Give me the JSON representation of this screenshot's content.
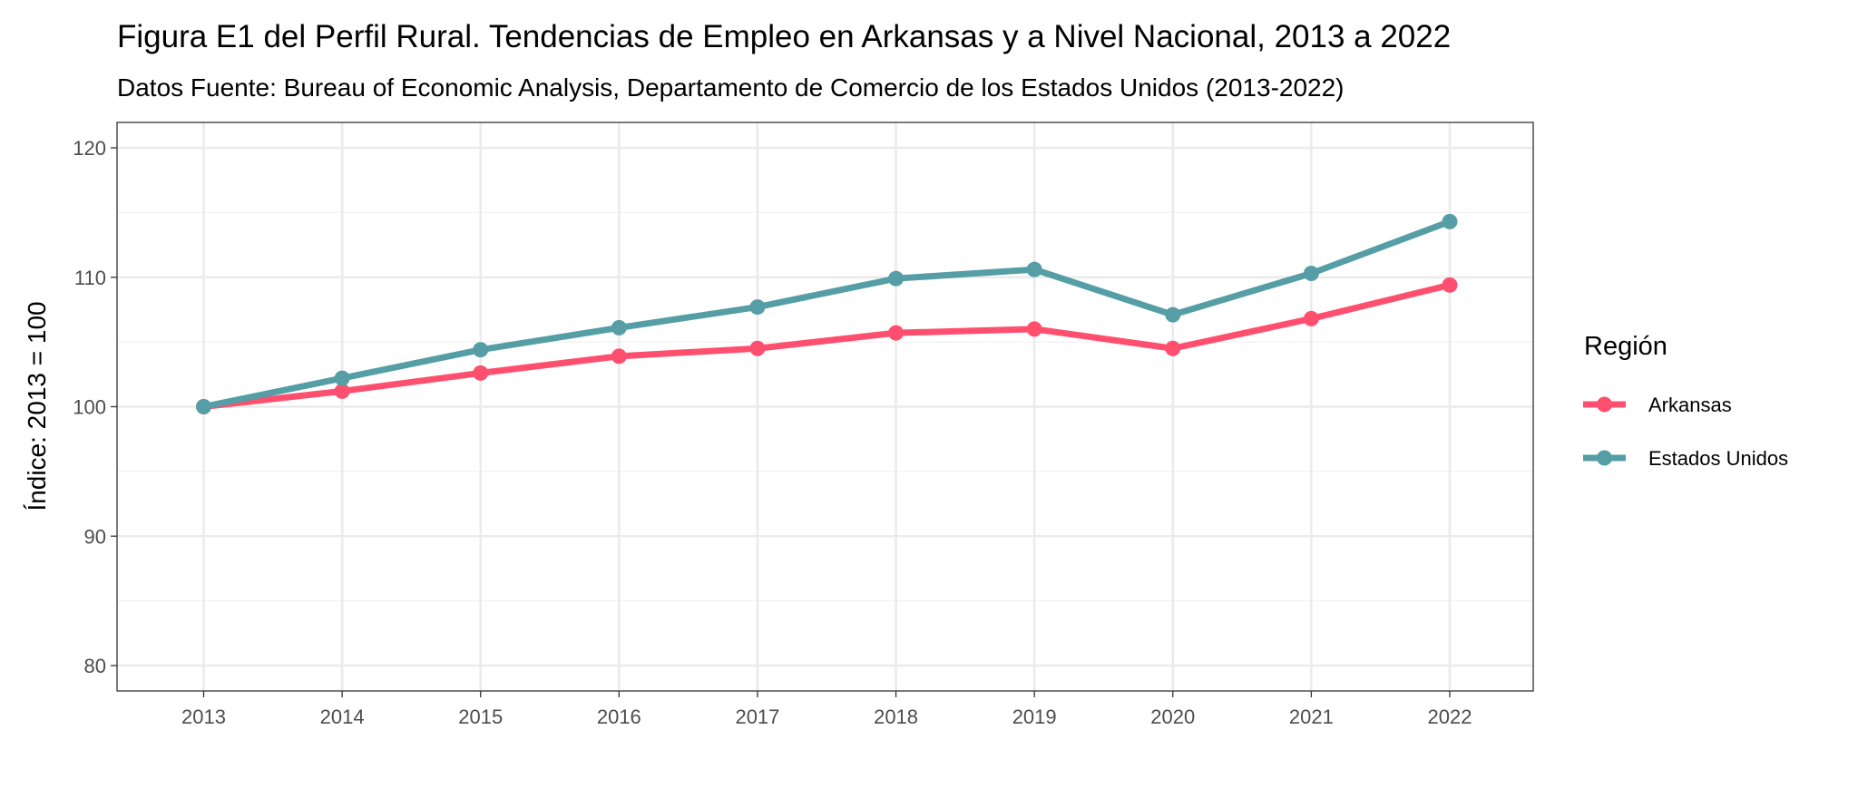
{
  "chart_data": {
    "type": "line",
    "title": "Figura E1 del Perfil Rural. Tendencias de Empleo en Arkansas y a Nivel Nacional, 2013 a 2022",
    "subtitle": "Datos Fuente: Bureau of Economic Analysis, Departamento de Comercio de los Estados Unidos (2013-2022)",
    "xlabel": "",
    "ylabel": "Índice: 2013 = 100",
    "x": [
      2013,
      2014,
      2015,
      2016,
      2017,
      2018,
      2019,
      2020,
      2021,
      2022
    ],
    "xticks": [
      "2013",
      "2014",
      "2015",
      "2016",
      "2017",
      "2018",
      "2019",
      "2020",
      "2021",
      "2022"
    ],
    "yticks": [
      "80",
      "90",
      "100",
      "110",
      "120"
    ],
    "ylim": [
      80,
      120
    ],
    "grid": true,
    "legend": {
      "title": "Región",
      "placement": "right"
    },
    "series": [
      {
        "name": "Arkansas",
        "color": "#FF4F6E",
        "values": [
          100,
          101.2,
          102.6,
          103.9,
          104.5,
          105.7,
          106.0,
          104.5,
          106.8,
          109.4
        ]
      },
      {
        "name": "Estados Unidos",
        "color": "#559EA5",
        "values": [
          100,
          102.2,
          104.4,
          106.1,
          107.7,
          109.9,
          110.6,
          107.1,
          110.3,
          114.3
        ]
      }
    ]
  }
}
